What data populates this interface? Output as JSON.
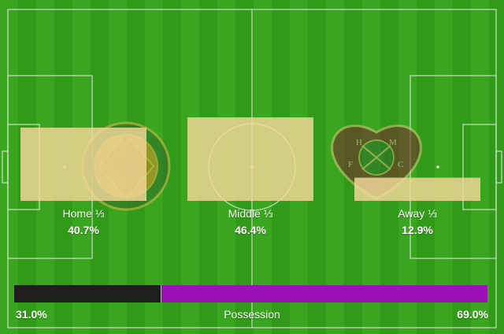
{
  "colors": {
    "stripe_light": "#3aa61f",
    "stripe_dark": "#329a19",
    "lines": "#dfeedd",
    "zone_fill": "#f4d89a",
    "home_possession": "#1e1e1e",
    "away_possession": "#9a12b6"
  },
  "zones": [
    {
      "label": "Home ⅓",
      "value": "40.7%",
      "share": 40.7
    },
    {
      "label": "Middle ⅓",
      "value": "46.4%",
      "share": 46.4
    },
    {
      "label": "Away ⅓",
      "value": "12.9%",
      "share": 12.9
    }
  ],
  "crests": {
    "home": "home-team-crest",
    "away": "away-team-crest-hmfc",
    "away_letters": [
      "H",
      "M",
      "F",
      "C"
    ]
  },
  "possession": {
    "label": "Possession",
    "home_value": "31.0%",
    "away_value": "69.0%",
    "home_share": 31.0,
    "away_share": 69.0
  }
}
